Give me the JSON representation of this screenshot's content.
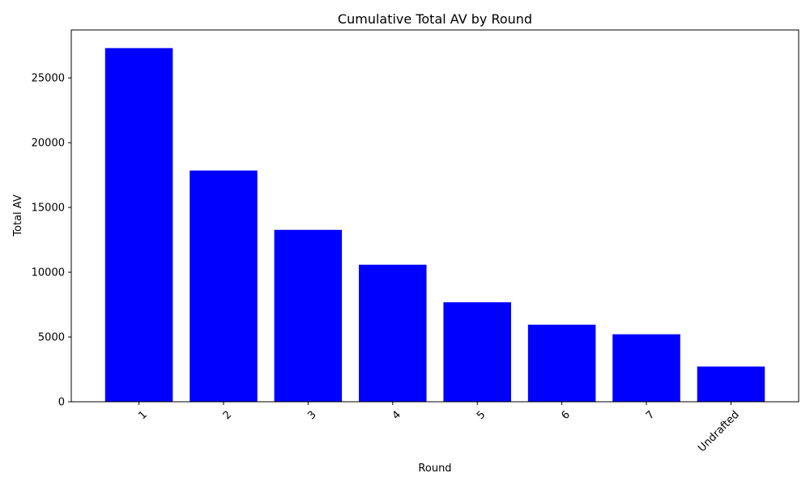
{
  "chart_data": {
    "type": "bar",
    "title": "Cumulative Total AV by Round",
    "xlabel": "Round",
    "ylabel": "Total AV",
    "categories": [
      "1",
      "2",
      "3",
      "4",
      "5",
      "6",
      "7",
      "Undrafted"
    ],
    "values": [
      27300,
      17850,
      13270,
      10580,
      7680,
      5950,
      5210,
      2720
    ],
    "ylim": [
      0,
      28700
    ],
    "yticks": [
      0,
      5000,
      10000,
      15000,
      20000,
      25000
    ],
    "xtick_rotation_deg": 45,
    "bar_color": "#0000ff",
    "grid": false,
    "legend": "none"
  }
}
